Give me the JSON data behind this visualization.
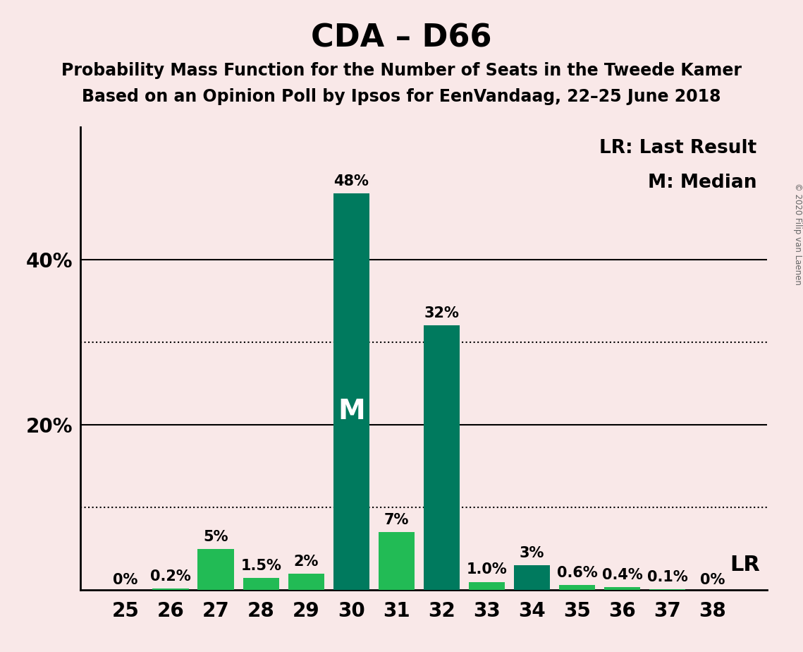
{
  "title": "CDA – D66",
  "subtitle1": "Probability Mass Function for the Number of Seats in the Tweede Kamer",
  "subtitle2": "Based on an Opinion Poll by Ipsos for EenVandaag, 22–25 June 2018",
  "copyright": "© 2020 Filip van Laenen",
  "seats": [
    25,
    26,
    27,
    28,
    29,
    30,
    31,
    32,
    33,
    34,
    35,
    36,
    37,
    38
  ],
  "probabilities": [
    0.0,
    0.2,
    5.0,
    1.5,
    2.0,
    48.0,
    7.0,
    32.0,
    1.0,
    3.0,
    0.6,
    0.4,
    0.1,
    0.0
  ],
  "labels": [
    "0%",
    "0.2%",
    "5%",
    "1.5%",
    "2%",
    "48%",
    "7%",
    "32%",
    "1.0%",
    "3%",
    "0.6%",
    "0.4%",
    "0.1%",
    "0%"
  ],
  "bar_colors": [
    "#22bb55",
    "#22bb55",
    "#22bb55",
    "#22bb55",
    "#22bb55",
    "#007a5e",
    "#22bb55",
    "#007a5e",
    "#22bb55",
    "#007a5e",
    "#22bb55",
    "#22bb55",
    "#22bb55",
    "#22bb55"
  ],
  "median_seat": 30,
  "background_color": "#f9e8e8",
  "ylim": [
    0,
    56
  ],
  "dotted_lines": [
    10.0,
    30.0
  ],
  "solid_lines": [
    20.0,
    40.0
  ],
  "legend_lr": "LR: Last Result",
  "legend_m": "M: Median",
  "lr_label": "LR",
  "m_label": "M",
  "title_fontsize": 32,
  "subtitle_fontsize": 17,
  "bar_label_fontsize": 15,
  "tick_fontsize": 20,
  "legend_fontsize": 19,
  "m_fontsize": 28,
  "lr_fontsize": 22
}
